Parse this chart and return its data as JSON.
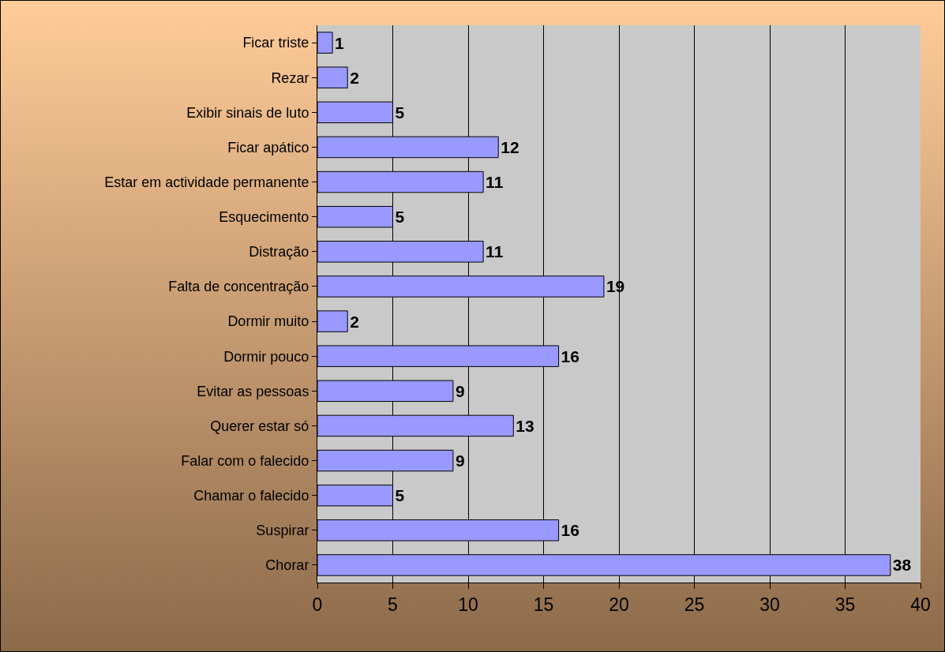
{
  "chart_data": {
    "type": "bar",
    "orientation": "horizontal",
    "categories": [
      "Ficar triste",
      "Rezar",
      "Exibir sinais de luto",
      "Ficar apático",
      "Estar em actividade permanente",
      "Esquecimento",
      "Distração",
      "Falta de concentração",
      "Dormir muito",
      "Dormir pouco",
      "Evitar as pessoas",
      "Querer estar só",
      "Falar com o falecido",
      "Chamar o falecido",
      "Suspirar",
      "Chorar"
    ],
    "values": [
      1,
      2,
      5,
      12,
      11,
      5,
      11,
      19,
      2,
      16,
      9,
      13,
      9,
      5,
      16,
      38
    ],
    "color": "#9999ff",
    "xlim": [
      0,
      40
    ],
    "xticks": [
      0,
      5,
      10,
      15,
      20,
      25,
      30,
      35,
      40
    ],
    "grid": "x",
    "data_labels": true
  }
}
